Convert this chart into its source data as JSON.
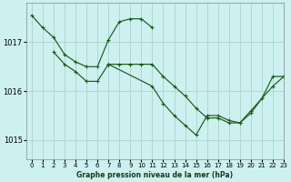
{
  "title": "Graphe pression niveau de la mer (hPa)",
  "background_color": "#cdf0f0",
  "grid_color": "#b0d8d0",
  "line_color": "#1a5c1a",
  "xlim": [
    -0.5,
    23
  ],
  "ylim": [
    1014.6,
    1017.8
  ],
  "yticks": [
    1015,
    1016,
    1017
  ],
  "xticks": [
    0,
    1,
    2,
    3,
    4,
    5,
    6,
    7,
    8,
    9,
    10,
    11,
    12,
    13,
    14,
    15,
    16,
    17,
    18,
    19,
    20,
    21,
    22,
    23
  ],
  "series": [
    {
      "x": [
        0,
        1,
        2,
        3,
        4,
        5,
        6,
        7,
        8,
        9,
        10,
        11
      ],
      "y": [
        1017.55,
        1017.3,
        1017.1,
        1016.75,
        1016.6,
        1016.5,
        1016.5,
        1017.05,
        1017.42,
        1017.48,
        1017.48,
        1017.3
      ]
    },
    {
      "x": [
        2,
        3,
        4,
        5,
        6,
        7
      ],
      "y": [
        1016.8,
        1016.55,
        1016.4,
        1016.2,
        1016.2,
        1016.55
      ]
    },
    {
      "x": [
        7,
        8,
        9,
        10,
        11,
        12,
        13,
        14,
        15,
        16,
        17,
        18,
        19,
        20,
        21,
        22,
        23
      ],
      "y": [
        1016.55,
        1016.55,
        1016.55,
        1016.55,
        1016.55,
        1016.3,
        1016.1,
        1015.9,
        1015.65,
        1015.45,
        1015.45,
        1015.35,
        1015.35,
        1015.55,
        1015.85,
        1016.3,
        1016.3
      ]
    },
    {
      "x": [
        7,
        11,
        12,
        13,
        14,
        15,
        16,
        17,
        18,
        19,
        20,
        22,
        23
      ],
      "y": [
        1016.55,
        1016.1,
        1015.75,
        1015.5,
        1015.3,
        1015.1,
        1015.5,
        1015.5,
        1015.4,
        1015.35,
        1015.6,
        1016.1,
        1016.3
      ]
    }
  ]
}
